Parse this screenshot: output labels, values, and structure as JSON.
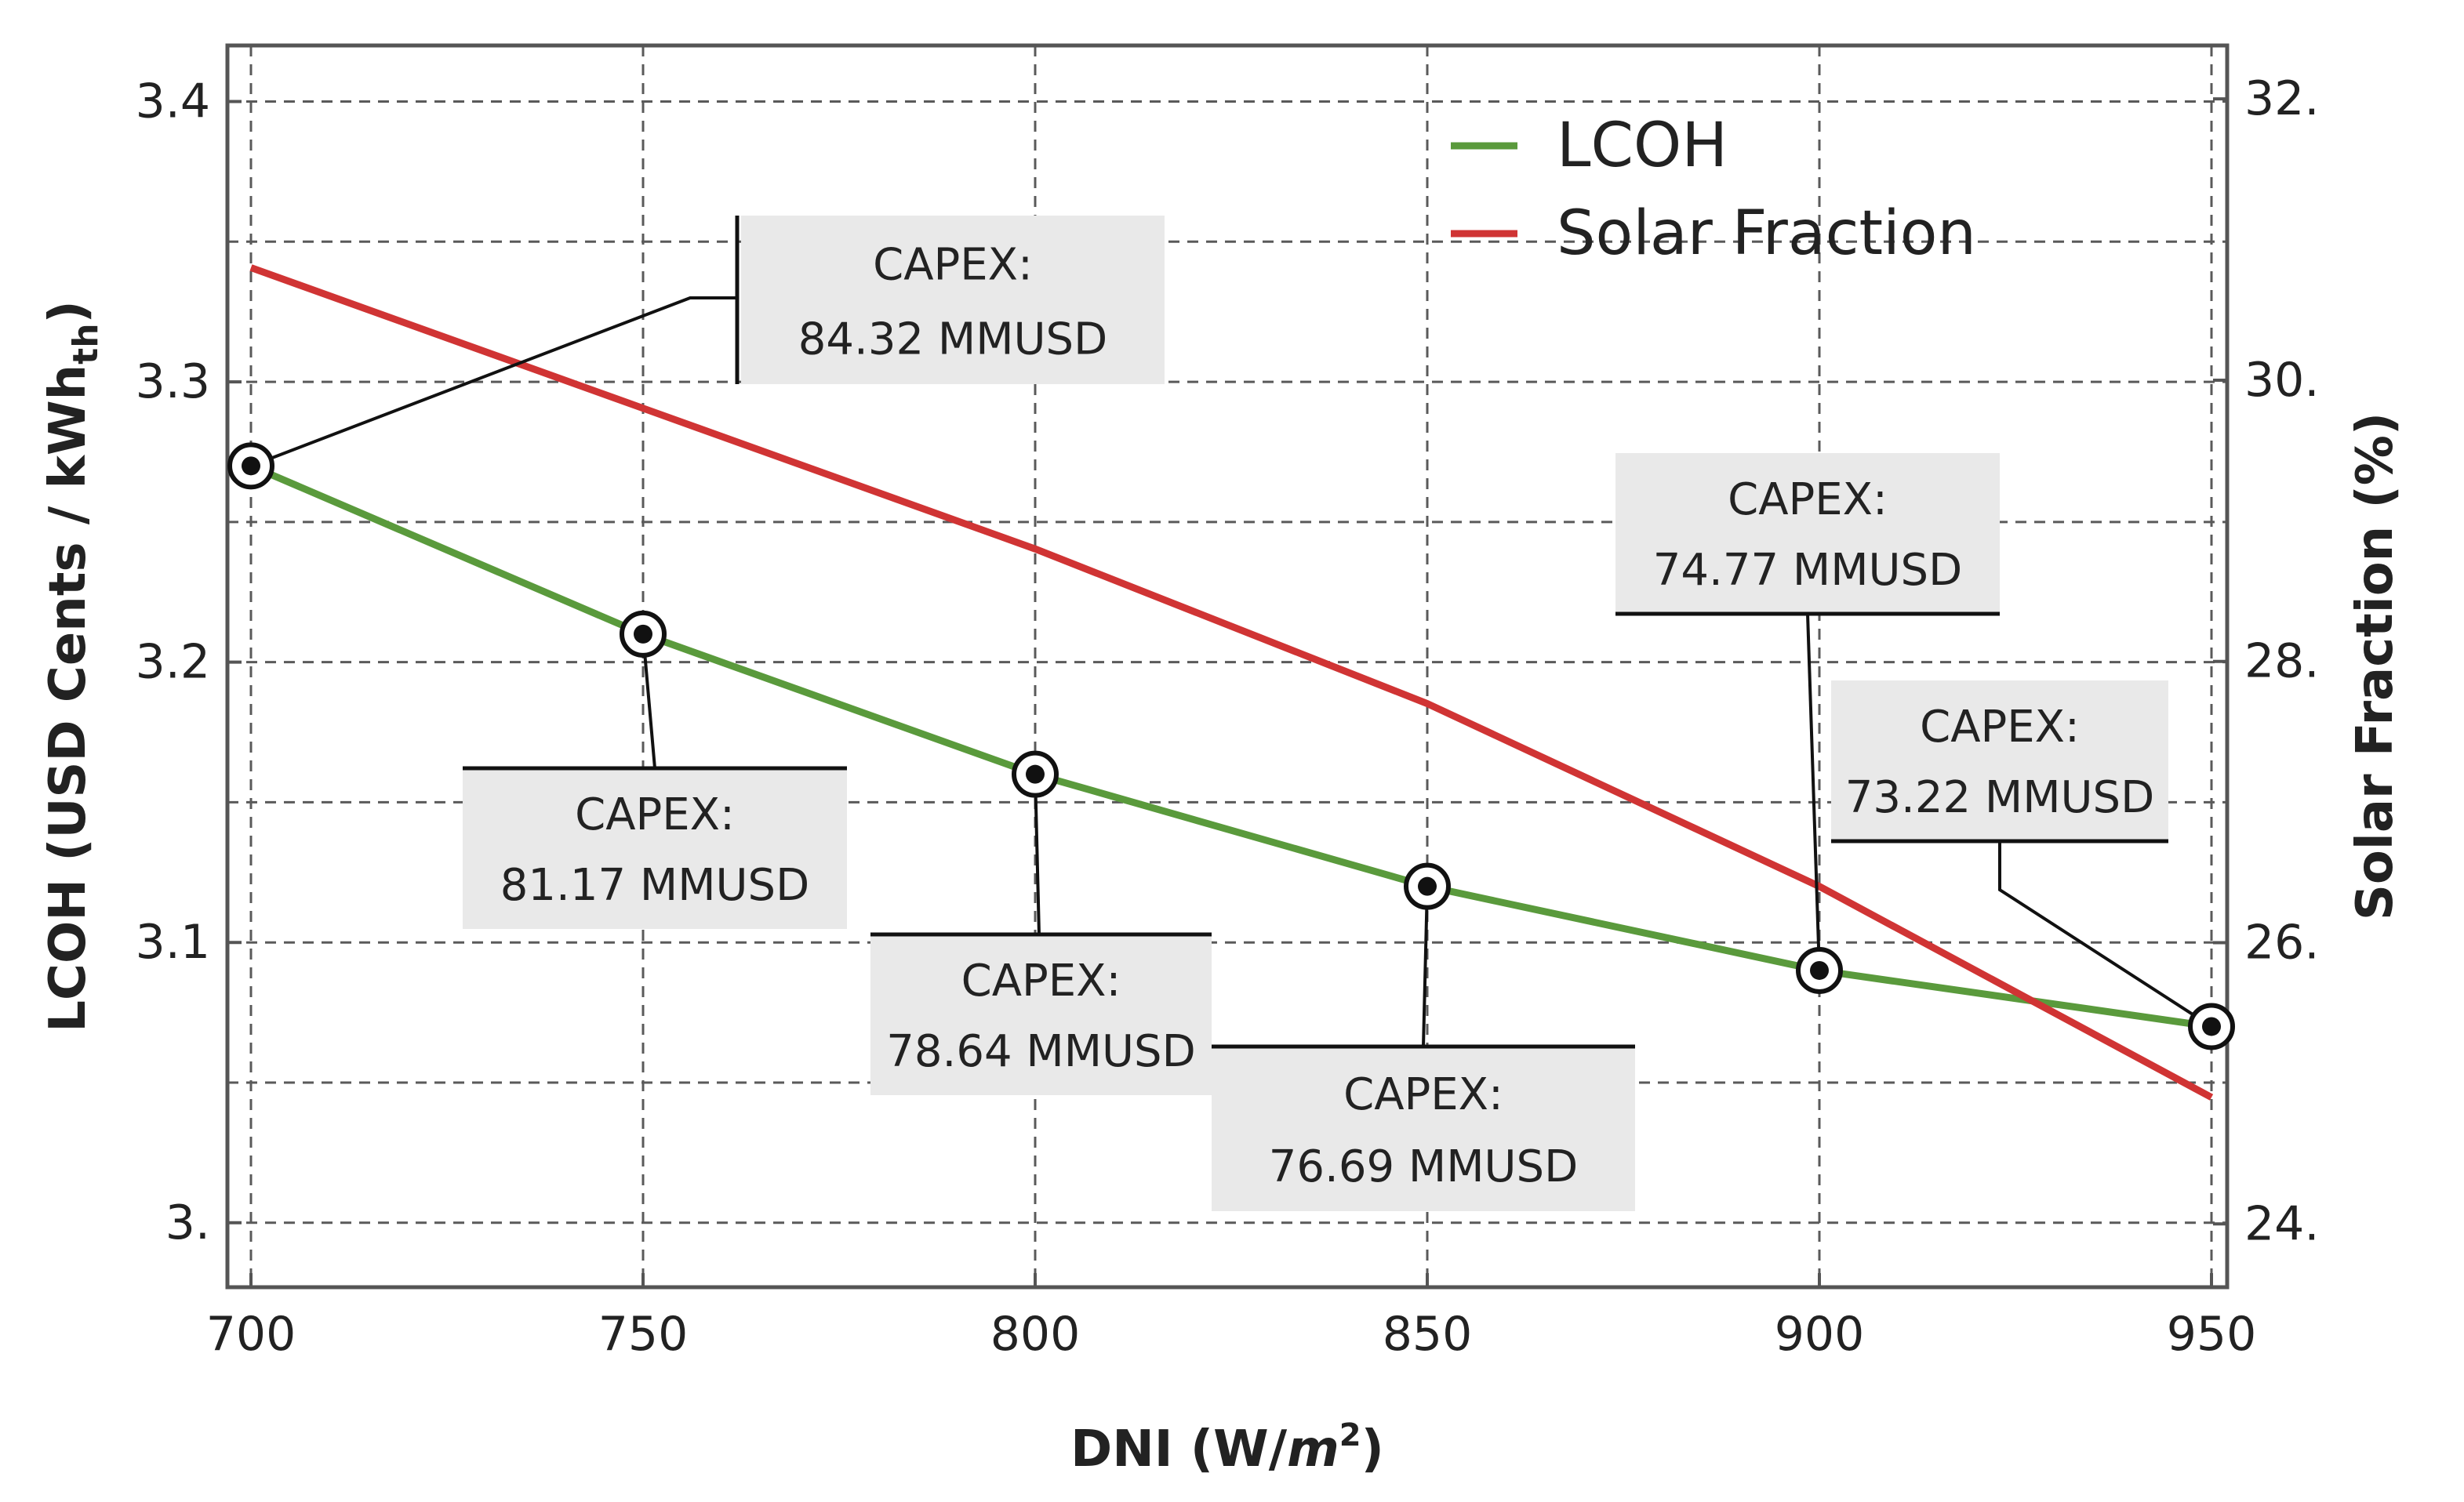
{
  "chart_data": {
    "type": "line",
    "xlabel": "DNI (W/m²)",
    "xlabel_main": "DNI (W/",
    "xlabel_unit": "m",
    "xlabel_exp": "2",
    "xlabel_close": ")",
    "ylabel": "LCOH (USD Cents / kWhth)",
    "ylabel_main": "LCOH (USD Cents / kWh",
    "ylabel_sub": "th",
    "ylabel_close": ")",
    "y2label": "Solar Fraction (%)",
    "xlim": [
      697,
      952
    ],
    "ylim": [
      2.977,
      3.42
    ],
    "y2lim": [
      23.55,
      32.38
    ],
    "x_ticks": [
      700,
      750,
      800,
      850,
      900,
      950
    ],
    "x_tick_labels": [
      "700",
      "750",
      "800",
      "850",
      "900",
      "950"
    ],
    "y_ticks": [
      3.0,
      3.1,
      3.2,
      3.3,
      3.4
    ],
    "y_tick_labels": [
      "3.",
      "3.1",
      "3.2",
      "3.3",
      "3.4"
    ],
    "y_minor_grid": [
      3.05,
      3.15,
      3.25,
      3.35
    ],
    "y2_ticks": [
      24,
      26,
      28,
      30,
      32
    ],
    "y2_tick_labels": [
      "24.",
      "26.",
      "28.",
      "30.",
      "32."
    ],
    "grid": true,
    "legend_position": "top-right",
    "series": [
      {
        "name": "LCOH",
        "axis": "left",
        "color": "#5a9a3c",
        "x": [
          700,
          750,
          800,
          850,
          900,
          950
        ],
        "values": [
          3.27,
          3.21,
          3.16,
          3.12,
          3.09,
          3.07
        ]
      },
      {
        "name": "Solar Fraction",
        "axis": "right",
        "color": "#d03434",
        "x": [
          700,
          750,
          800,
          850,
          900,
          950
        ],
        "values": [
          30.8,
          29.8,
          28.8,
          27.7,
          26.4,
          24.9
        ]
      }
    ],
    "annotations": [
      {
        "x": 700,
        "y": 3.27,
        "line1": "CAPEX:",
        "line2": "84.32 MMUSD",
        "placement": "upper-right"
      },
      {
        "x": 750,
        "y": 3.21,
        "line1": "CAPEX:",
        "line2": "81.17 MMUSD",
        "placement": "below"
      },
      {
        "x": 800,
        "y": 3.16,
        "line1": "CAPEX:",
        "line2": "78.64 MMUSD",
        "placement": "below"
      },
      {
        "x": 850,
        "y": 3.12,
        "line1": "CAPEX:",
        "line2": "76.69 MMUSD",
        "placement": "below"
      },
      {
        "x": 900,
        "y": 3.09,
        "line1": "CAPEX:",
        "line2": "74.77 MMUSD",
        "placement": "above"
      },
      {
        "x": 950,
        "y": 3.07,
        "line1": "CAPEX:",
        "line2": "73.22 MMUSD",
        "placement": "upper-left"
      }
    ]
  }
}
